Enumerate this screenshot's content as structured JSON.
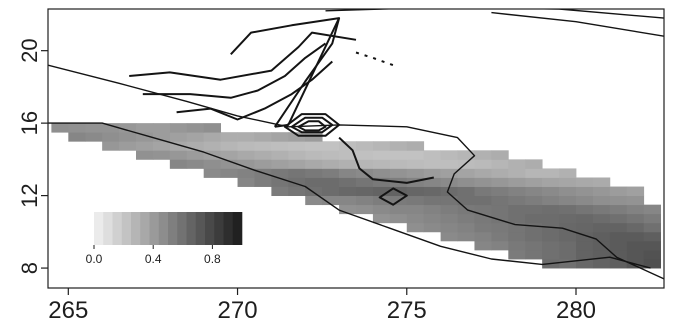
{
  "chart_data": {
    "type": "heatmap",
    "title": "",
    "xlabel": "",
    "ylabel": "",
    "xlim": [
      264.4,
      282.6
    ],
    "ylim": [
      6.9,
      22.3
    ],
    "x_ticks": [
      265,
      270,
      275,
      280
    ],
    "y_ticks": [
      8,
      12,
      16,
      20
    ],
    "x_tick_labels": [
      "265",
      "270",
      "275",
      "280"
    ],
    "y_tick_labels": [
      "8",
      "12",
      "16",
      "20"
    ],
    "grid": false,
    "colorbar": {
      "placement": "lower-left",
      "range": [
        0,
        1
      ],
      "tick_values": [
        0.0,
        0.4,
        0.8
      ],
      "tick_labels": [
        "0.0",
        "0.4",
        "0.8"
      ],
      "colors": [
        "#f2f2f2",
        "#1a1a1a"
      ]
    },
    "cell_size_deg": [
      0.5,
      0.5
    ],
    "rows_y_start": 8.0,
    "rows": [
      {
        "x0": 279.0,
        "values": [
          0.62,
          0.6,
          0.64,
          0.66,
          0.68,
          0.72,
          0.75
        ]
      },
      {
        "x0": 278.0,
        "values": [
          0.55,
          0.58,
          0.6,
          0.62,
          0.66,
          0.68,
          0.7,
          0.72,
          0.74
        ]
      },
      {
        "x0": 277.0,
        "values": [
          0.5,
          0.52,
          0.56,
          0.58,
          0.6,
          0.62,
          0.66,
          0.68,
          0.7,
          0.72,
          0.72
        ]
      },
      {
        "x0": 276.0,
        "values": [
          0.48,
          0.5,
          0.52,
          0.55,
          0.58,
          0.6,
          0.62,
          0.64,
          0.66,
          0.68,
          0.7,
          0.7,
          0.68
        ]
      },
      {
        "x0": 275.0,
        "values": [
          0.46,
          0.48,
          0.5,
          0.52,
          0.55,
          0.56,
          0.58,
          0.6,
          0.62,
          0.64,
          0.65,
          0.66,
          0.66,
          0.64,
          0.6
        ]
      },
      {
        "x0": 274.0,
        "values": [
          0.44,
          0.46,
          0.48,
          0.5,
          0.52,
          0.54,
          0.56,
          0.58,
          0.6,
          0.62,
          0.62,
          0.63,
          0.64,
          0.62,
          0.6,
          0.58,
          0.55
        ]
      },
      {
        "x0": 273.0,
        "values": [
          0.45,
          0.46,
          0.48,
          0.5,
          0.5,
          0.52,
          0.54,
          0.56,
          0.57,
          0.58,
          0.6,
          0.6,
          0.61,
          0.6,
          0.58,
          0.56,
          0.54,
          0.52,
          0.5
        ]
      },
      {
        "x0": 272.0,
        "values": [
          0.48,
          0.5,
          0.5,
          0.52,
          0.54,
          0.55,
          0.56,
          0.58,
          0.58,
          0.6,
          0.6,
          0.58,
          0.56,
          0.54,
          0.52,
          0.5,
          0.48,
          0.46,
          0.45,
          0.44
        ]
      },
      {
        "x0": 271.0,
        "values": [
          0.55,
          0.58,
          0.6,
          0.62,
          0.64,
          0.65,
          0.66,
          0.66,
          0.65,
          0.64,
          0.62,
          0.6,
          0.56,
          0.54,
          0.52,
          0.5,
          0.48,
          0.46,
          0.44,
          0.42,
          0.4,
          0.38
        ]
      },
      {
        "x0": 270.0,
        "values": [
          0.5,
          0.54,
          0.58,
          0.6,
          0.62,
          0.62,
          0.6,
          0.58,
          0.56,
          0.54,
          0.52,
          0.5,
          0.48,
          0.46,
          0.44,
          0.42,
          0.4,
          0.38,
          0.36,
          0.35,
          0.34,
          0.33
        ]
      },
      {
        "x0": 269.0,
        "values": [
          0.48,
          0.5,
          0.52,
          0.54,
          0.56,
          0.58,
          0.56,
          0.54,
          0.5,
          0.48,
          0.46,
          0.44,
          0.42,
          0.4,
          0.38,
          0.36,
          0.34,
          0.32,
          0.3,
          0.28,
          0.28,
          0.3
        ]
      },
      {
        "x0": 268.0,
        "values": [
          0.5,
          0.48,
          0.46,
          0.44,
          0.42,
          0.4,
          0.38,
          0.36,
          0.34,
          0.32,
          0.3,
          0.28,
          0.27,
          0.26,
          0.25,
          0.24,
          0.24,
          0.25,
          0.26,
          0.28,
          0.3,
          0.32
        ]
      },
      {
        "x0": 267.0,
        "values": [
          0.45,
          0.44,
          0.42,
          0.4,
          0.38,
          0.36,
          0.34,
          0.32,
          0.3,
          0.28,
          0.26,
          0.25,
          0.24,
          0.23,
          0.22,
          0.22,
          0.22,
          0.24,
          0.26,
          0.28,
          0.3,
          0.32
        ]
      },
      {
        "x0": 266.0,
        "values": [
          0.42,
          0.4,
          0.38,
          0.36,
          0.34,
          0.32,
          0.3,
          0.28,
          0.26,
          0.25,
          0.24,
          0.23,
          0.22,
          0.22,
          0.24,
          0.26,
          0.28,
          0.3,
          0.32
        ]
      },
      {
        "x0": 265.0,
        "values": [
          0.5,
          0.48,
          0.46,
          0.44,
          0.42,
          0.4,
          0.38,
          0.36,
          0.34,
          0.32,
          0.32,
          0.34,
          0.36,
          0.38,
          0.4
        ]
      },
      {
        "x0": 264.5,
        "values": [
          0.46,
          0.45,
          0.44,
          0.44,
          0.42,
          0.4,
          0.4,
          0.42,
          0.44,
          0.46
        ]
      }
    ],
    "contours": [
      {
        "name": "coastline-north",
        "points": [
          [
            272.6,
            22.2
          ],
          [
            276.0,
            22.4
          ],
          [
            279.5,
            22.3
          ],
          [
            282.6,
            21.8
          ]
        ]
      },
      {
        "name": "coastline-northeast",
        "points": [
          [
            277.5,
            22.1
          ],
          [
            280.0,
            21.6
          ],
          [
            282.6,
            20.8
          ]
        ]
      },
      {
        "name": "landmass-outline",
        "points": [
          [
            264.4,
            19.2
          ],
          [
            266.5,
            18.2
          ],
          [
            268.5,
            17.2
          ],
          [
            270.0,
            16.4
          ],
          [
            271.5,
            15.8
          ],
          [
            273.0,
            15.9
          ],
          [
            275.0,
            15.8
          ],
          [
            276.5,
            15.2
          ],
          [
            277.0,
            14.2
          ],
          [
            276.4,
            13.2
          ],
          [
            276.2,
            12.2
          ],
          [
            276.8,
            11.2
          ],
          [
            278.2,
            10.4
          ],
          [
            279.6,
            10.2
          ],
          [
            280.6,
            9.6
          ],
          [
            281.2,
            8.6
          ],
          [
            282.6,
            7.4
          ]
        ]
      },
      {
        "name": "coastline-south",
        "points": [
          [
            264.4,
            16.0
          ],
          [
            266.0,
            16.0
          ],
          [
            267.5,
            15.2
          ],
          [
            269.0,
            14.4
          ],
          [
            270.5,
            13.4
          ],
          [
            272.0,
            12.5
          ],
          [
            273.0,
            11.2
          ],
          [
            274.5,
            10.2
          ],
          [
            276.0,
            9.2
          ],
          [
            277.5,
            8.5
          ],
          [
            279.0,
            8.2
          ],
          [
            281.0,
            8.6
          ],
          [
            282.2,
            8.0
          ]
        ]
      },
      {
        "name": "contour-inner-west",
        "points": [
          [
            266.8,
            18.6
          ],
          [
            268.0,
            18.8
          ],
          [
            269.5,
            18.4
          ],
          [
            271.0,
            18.9
          ],
          [
            271.8,
            20.2
          ],
          [
            272.2,
            21.0
          ],
          [
            273.5,
            20.6
          ]
        ]
      },
      {
        "name": "contour-inner-mid",
        "points": [
          [
            267.2,
            17.6
          ],
          [
            268.6,
            17.6
          ],
          [
            269.8,
            17.4
          ],
          [
            270.6,
            17.8
          ],
          [
            271.4,
            18.6
          ],
          [
            272.0,
            19.6
          ],
          [
            272.6,
            20.4
          ]
        ]
      },
      {
        "name": "contour-inner-south",
        "points": [
          [
            268.2,
            16.6
          ],
          [
            269.2,
            16.8
          ],
          [
            270.0,
            16.2
          ],
          [
            270.8,
            16.8
          ],
          [
            271.6,
            17.6
          ],
          [
            272.2,
            18.4
          ],
          [
            272.8,
            19.4
          ]
        ]
      },
      {
        "name": "ridge-line",
        "points": [
          [
            271.1,
            15.8
          ],
          [
            272.0,
            18.3
          ],
          [
            272.8,
            20.4
          ],
          [
            273.0,
            21.8
          ]
        ]
      },
      {
        "name": "tri-outline",
        "points": [
          [
            269.8,
            19.8
          ],
          [
            270.4,
            21.0
          ],
          [
            271.6,
            21.4
          ],
          [
            273.0,
            21.8
          ],
          [
            271.5,
            15.9
          ],
          [
            271.1,
            15.8
          ]
        ]
      },
      {
        "name": "circle-outer",
        "closed": true,
        "points": [
          [
            271.4,
            15.8
          ],
          [
            271.9,
            16.5
          ],
          [
            272.6,
            16.5
          ],
          [
            273.0,
            15.9
          ],
          [
            272.6,
            15.3
          ],
          [
            271.8,
            15.3
          ]
        ]
      },
      {
        "name": "circle-mid",
        "closed": true,
        "points": [
          [
            271.6,
            15.8
          ],
          [
            272.0,
            16.3
          ],
          [
            272.5,
            16.3
          ],
          [
            272.8,
            15.9
          ],
          [
            272.5,
            15.5
          ],
          [
            271.9,
            15.5
          ]
        ]
      },
      {
        "name": "circle-inner",
        "closed": true,
        "points": [
          [
            271.8,
            15.8
          ],
          [
            272.1,
            16.1
          ],
          [
            272.4,
            16.1
          ],
          [
            272.6,
            15.8
          ],
          [
            272.4,
            15.6
          ],
          [
            272.0,
            15.6
          ]
        ]
      },
      {
        "name": "island",
        "closed": true,
        "points": [
          [
            274.2,
            11.9
          ],
          [
            274.6,
            12.4
          ],
          [
            275.0,
            12.0
          ],
          [
            274.6,
            11.5
          ]
        ]
      },
      {
        "name": "inner-ridge-south",
        "points": [
          [
            273.0,
            15.2
          ],
          [
            273.4,
            14.5
          ],
          [
            273.6,
            13.5
          ],
          [
            274.0,
            12.9
          ],
          [
            275.0,
            12.7
          ],
          [
            275.8,
            13.0
          ]
        ]
      },
      {
        "name": "dashes",
        "points": [
          [
            273.5,
            19.9
          ],
          [
            274.0,
            19.6
          ],
          [
            274.6,
            19.2
          ]
        ]
      }
    ]
  }
}
